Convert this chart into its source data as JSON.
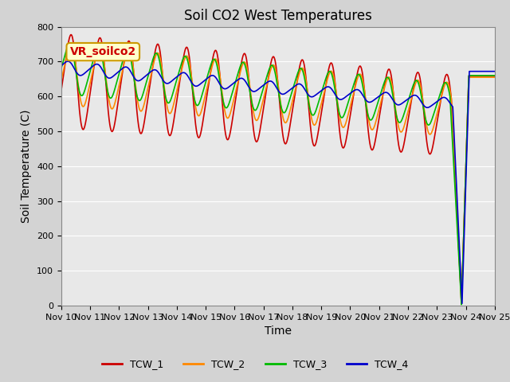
{
  "title": "Soil CO2 West Temperatures",
  "xlabel": "Time",
  "ylabel": "Soil Temperature (C)",
  "ylim": [
    0,
    800
  ],
  "xlim_days": [
    0,
    15
  ],
  "x_tick_labels": [
    "Nov 10",
    "Nov 11",
    "Nov 12",
    "Nov 13",
    "Nov 14",
    "Nov 15",
    "Nov 16",
    "Nov 17",
    "Nov 18",
    "Nov 19",
    "Nov 20",
    "Nov 21",
    "Nov 22",
    "Nov 23",
    "Nov 24",
    "Nov 25"
  ],
  "series_colors": [
    "#cc0000",
    "#ff8800",
    "#00bb00",
    "#0000cc"
  ],
  "series_names": [
    "TCW_1",
    "TCW_2",
    "TCW_3",
    "TCW_4"
  ],
  "annotation_text": "VR_soilco2",
  "annotation_bg": "#ffffcc",
  "annotation_border": "#cc9900",
  "background_color": "#d3d3d3",
  "plot_bg_color": "#e8e8e8",
  "title_fontsize": 12,
  "axis_label_fontsize": 10,
  "tick_fontsize": 8,
  "legend_fontsize": 9,
  "grid_color": "#ffffff",
  "figsize": [
    6.4,
    4.8
  ],
  "dpi": 100
}
